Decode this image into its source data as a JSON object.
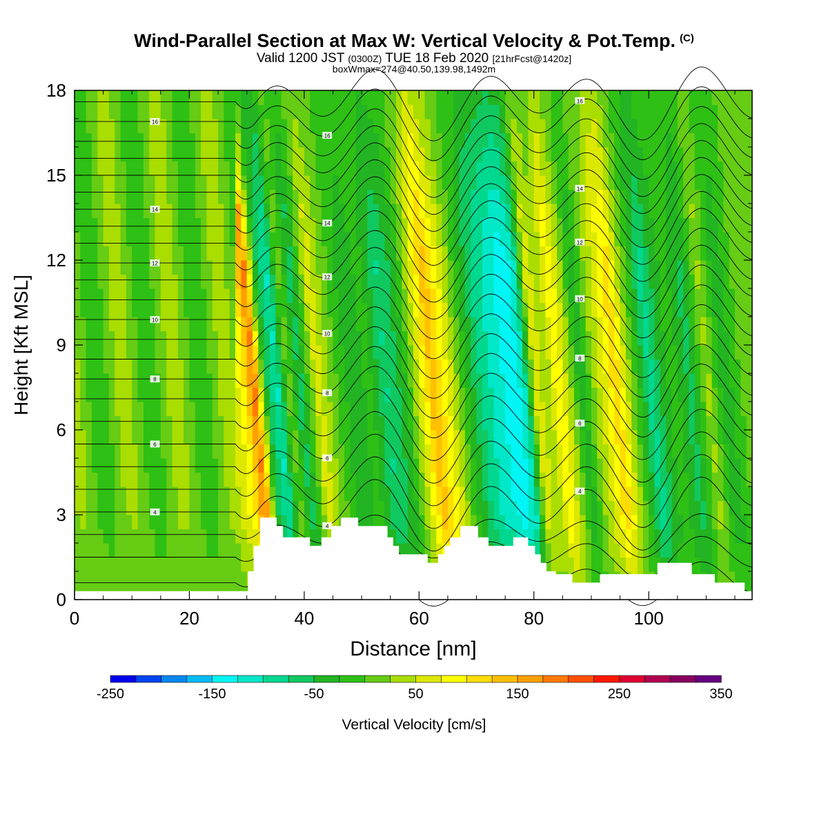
{
  "title": {
    "main": "Wind-Parallel Section at Max W: Vertical Velocity & Pot.Temp.",
    "copyright": "(C)",
    "valid_prefix": "Valid 1200 JST",
    "utc": "(0300Z)",
    "valid_date": "TUE 18 Feb 2020",
    "forecast": "[21hrFcst@1420z]",
    "boxinfo": "boxWmax=274@40.50,139.98,1492m"
  },
  "chart_data": {
    "type": "heatmap",
    "xlabel": "Distance [nm]",
    "ylabel": "Height [Kft MSL]",
    "xlim": [
      0,
      118
    ],
    "ylim": [
      0,
      18
    ],
    "xticks": [
      0,
      20,
      40,
      60,
      80,
      100
    ],
    "yticks": [
      0,
      3,
      6,
      9,
      12,
      15,
      18
    ],
    "colorbar": {
      "label": "Vertical Velocity [cm/s]",
      "ticks": [
        "-250",
        "-150",
        "-50",
        "50",
        "150",
        "250",
        "350"
      ],
      "colors": [
        "#0000ee",
        "#0044f0",
        "#0088f0",
        "#00bbf5",
        "#00f5f5",
        "#00e8c8",
        "#00d890",
        "#10c860",
        "#22b422",
        "#2ec014",
        "#66cc14",
        "#aadd00",
        "#dde800",
        "#ffff00",
        "#ffdd00",
        "#ffc000",
        "#ffa000",
        "#ff7a00",
        "#ff5000",
        "#ff1800",
        "#dd0030",
        "#b00050",
        "#880060",
        "#660080"
      ]
    },
    "bands": [
      {
        "x": 0,
        "v": 5
      },
      {
        "x": 4,
        "v": -5
      },
      {
        "x": 8,
        "v": 0
      },
      {
        "x": 12,
        "v": -10
      },
      {
        "x": 18,
        "v": 5
      },
      {
        "x": 26,
        "v": 20
      },
      {
        "x": 30,
        "v": 80
      },
      {
        "x": 32,
        "v": 170
      },
      {
        "x": 34,
        "v": -40
      },
      {
        "x": 36,
        "v": -95
      },
      {
        "x": 38,
        "v": 15
      },
      {
        "x": 40,
        "v": -60
      },
      {
        "x": 43,
        "v": 60
      },
      {
        "x": 46,
        "v": 5
      },
      {
        "x": 49,
        "v": -40
      },
      {
        "x": 52,
        "v": -15
      },
      {
        "x": 55,
        "v": -70
      },
      {
        "x": 58,
        "v": -35
      },
      {
        "x": 61,
        "v": 60
      },
      {
        "x": 63,
        "v": 130
      },
      {
        "x": 66,
        "v": 60
      },
      {
        "x": 69,
        "v": -20
      },
      {
        "x": 72,
        "v": -80
      },
      {
        "x": 75,
        "v": -110
      },
      {
        "x": 77,
        "v": -130
      },
      {
        "x": 79,
        "v": -100
      },
      {
        "x": 81,
        "v": 60
      },
      {
        "x": 83,
        "v": 30
      },
      {
        "x": 85,
        "v": 90
      },
      {
        "x": 87,
        "v": 30
      },
      {
        "x": 89,
        "v": -40
      },
      {
        "x": 91,
        "v": 20
      },
      {
        "x": 93,
        "v": 60
      },
      {
        "x": 95,
        "v": 110
      },
      {
        "x": 97,
        "v": 40
      },
      {
        "x": 99,
        "v": -20
      },
      {
        "x": 101,
        "v": -80
      },
      {
        "x": 103,
        "v": -40
      },
      {
        "x": 105,
        "v": -10
      },
      {
        "x": 108,
        "v": -55
      },
      {
        "x": 111,
        "v": 30
      },
      {
        "x": 114,
        "v": -40
      },
      {
        "x": 118,
        "v": 20
      }
    ],
    "terrain_kft": [
      {
        "x": 0,
        "h": 0.3
      },
      {
        "x": 30.2,
        "h": 0.3
      },
      {
        "x": 30.2,
        "h": 1.0
      },
      {
        "x": 31.2,
        "h": 1.0
      },
      {
        "x": 31.2,
        "h": 1.9
      },
      {
        "x": 32.3,
        "h": 1.9
      },
      {
        "x": 32.3,
        "h": 2.9
      },
      {
        "x": 35.2,
        "h": 2.9
      },
      {
        "x": 35.2,
        "h": 2.6
      },
      {
        "x": 36.3,
        "h": 2.6
      },
      {
        "x": 36.3,
        "h": 2.2
      },
      {
        "x": 41,
        "h": 2.2
      },
      {
        "x": 41,
        "h": 1.9
      },
      {
        "x": 43,
        "h": 1.9
      },
      {
        "x": 43,
        "h": 2.2
      },
      {
        "x": 44.7,
        "h": 2.2
      },
      {
        "x": 44.7,
        "h": 2.6
      },
      {
        "x": 46.4,
        "h": 2.6
      },
      {
        "x": 46.4,
        "h": 2.9
      },
      {
        "x": 49.4,
        "h": 2.9
      },
      {
        "x": 49.4,
        "h": 2.6
      },
      {
        "x": 54.5,
        "h": 2.6
      },
      {
        "x": 54.5,
        "h": 2.2
      },
      {
        "x": 55.5,
        "h": 2.2
      },
      {
        "x": 55.5,
        "h": 1.9
      },
      {
        "x": 56.5,
        "h": 1.9
      },
      {
        "x": 56.5,
        "h": 1.6
      },
      {
        "x": 61.5,
        "h": 1.6
      },
      {
        "x": 61.5,
        "h": 1.3
      },
      {
        "x": 63.3,
        "h": 1.3
      },
      {
        "x": 63.3,
        "h": 1.6
      },
      {
        "x": 64.4,
        "h": 1.6
      },
      {
        "x": 64.4,
        "h": 1.9
      },
      {
        "x": 65.4,
        "h": 1.9
      },
      {
        "x": 65.4,
        "h": 2.2
      },
      {
        "x": 67.2,
        "h": 2.2
      },
      {
        "x": 67.2,
        "h": 2.6
      },
      {
        "x": 70.3,
        "h": 2.6
      },
      {
        "x": 70.3,
        "h": 2.2
      },
      {
        "x": 72.1,
        "h": 2.2
      },
      {
        "x": 72.1,
        "h": 1.9
      },
      {
        "x": 76.4,
        "h": 1.9
      },
      {
        "x": 76.4,
        "h": 2.2
      },
      {
        "x": 79,
        "h": 2.2
      },
      {
        "x": 79,
        "h": 1.9
      },
      {
        "x": 80.2,
        "h": 1.9
      },
      {
        "x": 80.2,
        "h": 1.6
      },
      {
        "x": 81.2,
        "h": 1.6
      },
      {
        "x": 81.2,
        "h": 1.3
      },
      {
        "x": 82.2,
        "h": 1.3
      },
      {
        "x": 82.2,
        "h": 1.0
      },
      {
        "x": 83.8,
        "h": 1.0
      },
      {
        "x": 83.8,
        "h": 0.9
      },
      {
        "x": 86.7,
        "h": 0.9
      },
      {
        "x": 86.7,
        "h": 0.6
      },
      {
        "x": 91.5,
        "h": 0.6
      },
      {
        "x": 91.5,
        "h": 0.9
      },
      {
        "x": 101.5,
        "h": 0.9
      },
      {
        "x": 101.5,
        "h": 1.3
      },
      {
        "x": 107.5,
        "h": 1.3
      },
      {
        "x": 107.5,
        "h": 0.9
      },
      {
        "x": 111.5,
        "h": 0.9
      },
      {
        "x": 111.5,
        "h": 0.6
      },
      {
        "x": 116.7,
        "h": 0.6
      },
      {
        "x": 116.7,
        "h": 0.3
      },
      {
        "x": 118,
        "h": 0.3
      }
    ],
    "theta_contours": [
      {
        "base": 0.6
      },
      {
        "base": 1.5
      },
      {
        "base": 2.3
      },
      {
        "base": 3.1,
        "label": "4"
      },
      {
        "base": 3.9
      },
      {
        "base": 4.7
      },
      {
        "base": 5.5,
        "label": "6"
      },
      {
        "base": 6.3
      },
      {
        "base": 7.1
      },
      {
        "base": 7.8,
        "label": "8"
      },
      {
        "base": 8.5
      },
      {
        "base": 9.2
      },
      {
        "base": 9.9,
        "label": "10"
      },
      {
        "base": 10.6
      },
      {
        "base": 11.3
      },
      {
        "base": 11.9,
        "label": "12"
      },
      {
        "base": 12.6
      },
      {
        "base": 13.2
      },
      {
        "base": 13.8,
        "label": "14"
      },
      {
        "base": 14.4
      },
      {
        "base": 15.0
      },
      {
        "base": 15.6
      },
      {
        "base": 16.2
      },
      {
        "base": 16.9,
        "label": "16"
      },
      {
        "base": 17.6
      }
    ]
  }
}
